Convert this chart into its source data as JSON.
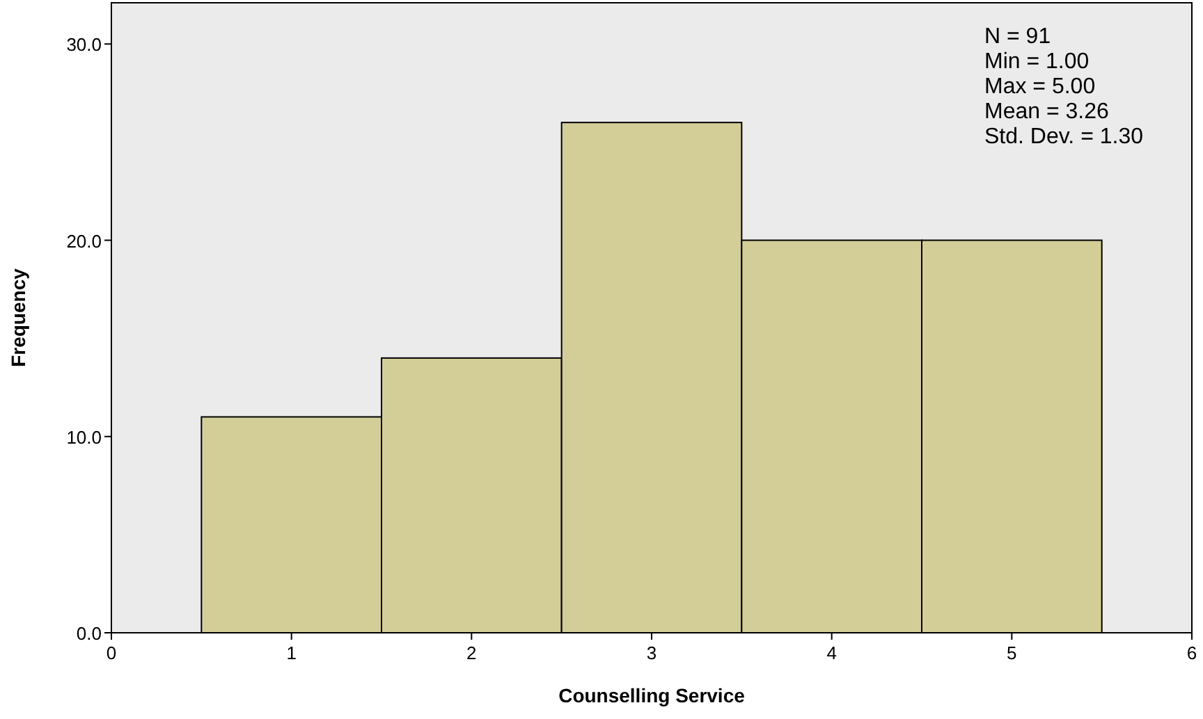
{
  "chart_data": {
    "type": "histogram",
    "xlabel": "Counselling Service",
    "ylabel": "Frequency",
    "bins": [
      0.5,
      1.5,
      2.5,
      3.5,
      4.5,
      5.5
    ],
    "values": [
      11,
      14,
      26,
      20,
      20
    ],
    "color": "#d3ce97",
    "xlim": [
      0,
      6
    ],
    "xticks": [
      0,
      1,
      2,
      3,
      4,
      5,
      6
    ],
    "ylim": [
      0,
      32.1
    ],
    "yticks": [
      {
        "value": 0,
        "label": "0.0"
      },
      {
        "value": 10,
        "label": "10.0"
      },
      {
        "value": 20,
        "label": "20.0"
      },
      {
        "value": 30,
        "label": "30.0"
      }
    ],
    "grid": false,
    "annotations": [
      "N = 91",
      "Min = 1.00",
      "Max = 5.00",
      "Mean = 3.26",
      "Std. Dev. = 1.30"
    ]
  }
}
